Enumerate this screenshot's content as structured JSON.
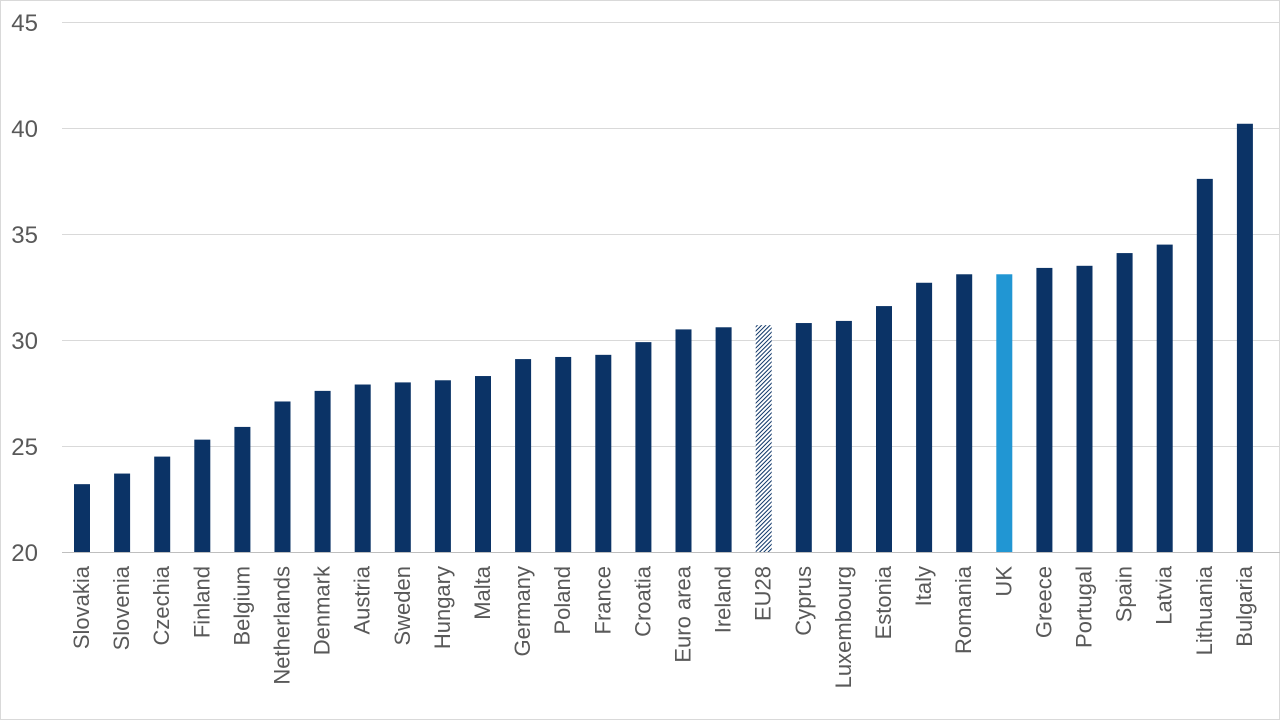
{
  "chart_data": {
    "type": "bar",
    "title": "",
    "xlabel": "",
    "ylabel": "",
    "ylim": [
      20,
      45
    ],
    "yticks": [
      20,
      25,
      30,
      35,
      40,
      45
    ],
    "grid": true,
    "legend": "none",
    "colors": {
      "default": "#0b3366",
      "highlight": "#2196d3",
      "hatched": "#0b3366",
      "gridline": "#d9d9d9",
      "label": "#595959"
    },
    "categories": [
      "Slovakia",
      "Slovenia",
      "Czechia",
      "Finland",
      "Belgium",
      "Netherlands",
      "Denmark",
      "Austria",
      "Sweden",
      "Hungary",
      "Malta",
      "Germany",
      "Poland",
      "France",
      "Croatia",
      "Euro area",
      "Ireland",
      "EU28",
      "Cyprus",
      "Luxembourg",
      "Estonia",
      "Italy",
      "Romania",
      "UK",
      "Greece",
      "Portugal",
      "Spain",
      "Latvia",
      "Lithuania",
      "Bulgaria"
    ],
    "values": [
      23.2,
      23.7,
      24.5,
      25.3,
      25.9,
      27.1,
      27.6,
      27.9,
      28.0,
      28.1,
      28.3,
      29.1,
      29.2,
      29.3,
      29.9,
      30.5,
      30.6,
      30.7,
      30.8,
      30.9,
      31.6,
      32.7,
      33.1,
      33.1,
      33.4,
      33.5,
      34.1,
      34.5,
      37.6,
      40.2
    ],
    "styles": [
      "default",
      "default",
      "default",
      "default",
      "default",
      "default",
      "default",
      "default",
      "default",
      "default",
      "default",
      "default",
      "default",
      "default",
      "default",
      "default",
      "default",
      "hatched",
      "default",
      "default",
      "default",
      "default",
      "default",
      "highlight",
      "default",
      "default",
      "default",
      "default",
      "default",
      "default"
    ]
  }
}
